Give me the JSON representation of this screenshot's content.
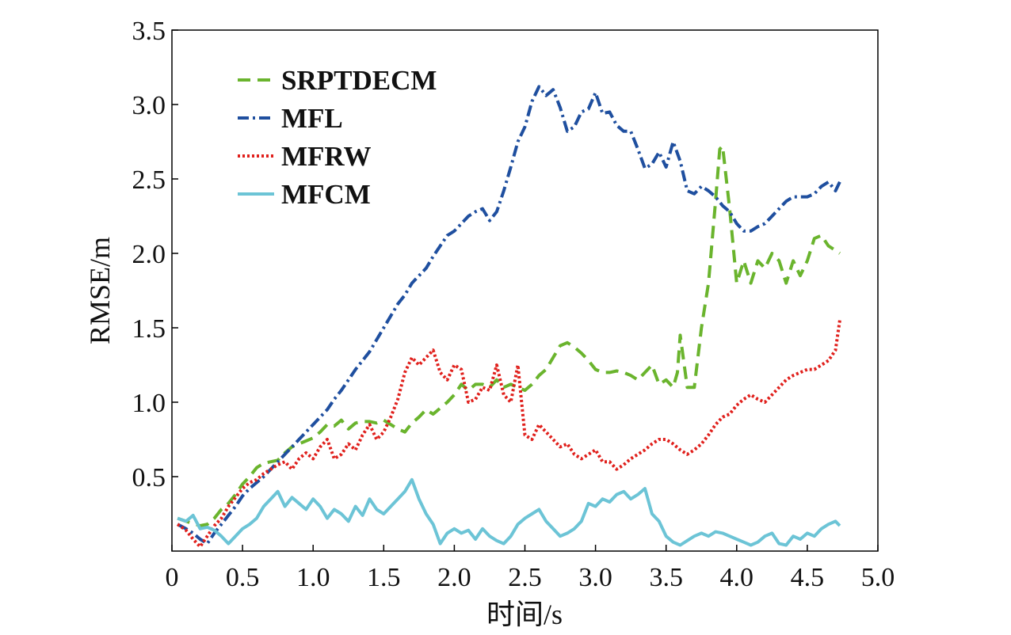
{
  "chart_data": {
    "type": "line",
    "xlabel": "时间/s",
    "ylabel": "RMSE/m",
    "xlim": [
      0,
      5.0
    ],
    "ylim": [
      0,
      3.5
    ],
    "xticks": [
      {
        "value": 0,
        "label": "0"
      },
      {
        "value": 0.5,
        "label": "0.5"
      },
      {
        "value": 1.0,
        "label": "1.0"
      },
      {
        "value": 1.5,
        "label": "1.5"
      },
      {
        "value": 2.0,
        "label": "2.0"
      },
      {
        "value": 2.5,
        "label": "2.5"
      },
      {
        "value": 3.0,
        "label": "3.0"
      },
      {
        "value": 3.5,
        "label": "3.5"
      },
      {
        "value": 4.0,
        "label": "4.0"
      },
      {
        "value": 4.5,
        "label": "4.5"
      },
      {
        "value": 5.0,
        "label": "5.0"
      }
    ],
    "yticks": [
      {
        "value": 0.5,
        "label": "0.5"
      },
      {
        "value": 1.0,
        "label": "1.0"
      },
      {
        "value": 1.5,
        "label": "1.5"
      },
      {
        "value": 2.0,
        "label": "2.0"
      },
      {
        "value": 2.5,
        "label": "2.5"
      },
      {
        "value": 3.0,
        "label": "3.0"
      },
      {
        "value": 3.5,
        "label": "3.5"
      }
    ],
    "grid": false,
    "legend_position": "top-left",
    "series": [
      {
        "name": "SRPTDECM",
        "color": "#6ab42d",
        "dash": "dashed",
        "x": [
          0.04,
          0.1,
          0.2,
          0.25,
          0.3,
          0.35,
          0.4,
          0.45,
          0.5,
          0.55,
          0.6,
          0.65,
          0.7,
          0.75,
          0.8,
          0.85,
          0.9,
          0.95,
          1.0,
          1.05,
          1.1,
          1.15,
          1.2,
          1.25,
          1.3,
          1.35,
          1.4,
          1.45,
          1.5,
          1.55,
          1.6,
          1.65,
          1.7,
          1.75,
          1.8,
          1.85,
          1.9,
          1.95,
          2.0,
          2.05,
          2.1,
          2.15,
          2.2,
          2.25,
          2.3,
          2.35,
          2.4,
          2.45,
          2.5,
          2.55,
          2.6,
          2.65,
          2.7,
          2.75,
          2.8,
          2.85,
          2.9,
          2.95,
          3.0,
          3.05,
          3.1,
          3.15,
          3.2,
          3.25,
          3.3,
          3.35,
          3.4,
          3.45,
          3.5,
          3.55,
          3.58,
          3.6,
          3.65,
          3.7,
          3.75,
          3.8,
          3.85,
          3.88,
          3.9,
          3.95,
          4.0,
          4.05,
          4.1,
          4.15,
          4.2,
          4.25,
          4.3,
          4.35,
          4.4,
          4.45,
          4.5,
          4.55,
          4.6,
          4.65,
          4.7,
          4.73
        ],
        "values": [
          0.22,
          0.2,
          0.17,
          0.18,
          0.22,
          0.28,
          0.32,
          0.38,
          0.45,
          0.5,
          0.56,
          0.59,
          0.6,
          0.61,
          0.66,
          0.7,
          0.72,
          0.74,
          0.76,
          0.8,
          0.85,
          0.84,
          0.88,
          0.82,
          0.86,
          0.87,
          0.87,
          0.86,
          0.88,
          0.85,
          0.82,
          0.8,
          0.86,
          0.9,
          0.95,
          0.92,
          0.96,
          1.0,
          1.05,
          1.12,
          1.08,
          1.12,
          1.12,
          1.1,
          1.15,
          1.1,
          1.12,
          1.1,
          1.08,
          1.12,
          1.18,
          1.22,
          1.3,
          1.38,
          1.4,
          1.37,
          1.33,
          1.28,
          1.22,
          1.2,
          1.2,
          1.21,
          1.2,
          1.18,
          1.15,
          1.2,
          1.25,
          1.12,
          1.15,
          1.1,
          1.2,
          1.45,
          1.1,
          1.1,
          1.5,
          1.8,
          2.35,
          2.7,
          2.72,
          2.3,
          1.8,
          1.95,
          1.8,
          1.95,
          1.9,
          2.0,
          1.95,
          1.8,
          1.95,
          1.85,
          1.95,
          2.1,
          2.12,
          2.05,
          2.02,
          2.0
        ]
      },
      {
        "name": "MFL",
        "color": "#1f4f9f",
        "dash": "dashdot",
        "x": [
          0.04,
          0.1,
          0.15,
          0.2,
          0.25,
          0.3,
          0.35,
          0.4,
          0.45,
          0.5,
          0.55,
          0.6,
          0.65,
          0.7,
          0.75,
          0.8,
          0.85,
          0.9,
          0.95,
          1.0,
          1.05,
          1.1,
          1.15,
          1.2,
          1.25,
          1.3,
          1.35,
          1.4,
          1.45,
          1.5,
          1.55,
          1.6,
          1.65,
          1.7,
          1.75,
          1.8,
          1.85,
          1.9,
          1.95,
          2.0,
          2.05,
          2.1,
          2.15,
          2.2,
          2.25,
          2.3,
          2.35,
          2.4,
          2.45,
          2.5,
          2.55,
          2.6,
          2.65,
          2.7,
          2.75,
          2.8,
          2.85,
          2.9,
          2.95,
          3.0,
          3.05,
          3.1,
          3.15,
          3.2,
          3.25,
          3.3,
          3.35,
          3.4,
          3.45,
          3.5,
          3.55,
          3.6,
          3.65,
          3.7,
          3.75,
          3.8,
          3.85,
          3.9,
          3.95,
          4.0,
          4.05,
          4.1,
          4.15,
          4.2,
          4.25,
          4.3,
          4.35,
          4.4,
          4.45,
          4.5,
          4.55,
          4.6,
          4.65,
          4.7,
          4.73
        ],
        "values": [
          0.18,
          0.15,
          0.12,
          0.08,
          0.05,
          0.12,
          0.18,
          0.24,
          0.3,
          0.37,
          0.42,
          0.46,
          0.5,
          0.55,
          0.6,
          0.65,
          0.7,
          0.75,
          0.8,
          0.85,
          0.9,
          0.95,
          1.02,
          1.08,
          1.15,
          1.22,
          1.28,
          1.34,
          1.42,
          1.5,
          1.58,
          1.66,
          1.72,
          1.8,
          1.85,
          1.9,
          1.98,
          2.05,
          2.12,
          2.15,
          2.2,
          2.25,
          2.28,
          2.3,
          2.22,
          2.28,
          2.42,
          2.58,
          2.75,
          2.85,
          3.02,
          3.12,
          3.06,
          3.1,
          2.98,
          2.82,
          2.85,
          2.95,
          2.97,
          3.08,
          2.94,
          2.95,
          2.86,
          2.82,
          2.82,
          2.7,
          2.57,
          2.6,
          2.68,
          2.58,
          2.75,
          2.62,
          2.42,
          2.4,
          2.45,
          2.42,
          2.38,
          2.32,
          2.28,
          2.2,
          2.15,
          2.15,
          2.18,
          2.2,
          2.25,
          2.3,
          2.35,
          2.38,
          2.38,
          2.38,
          2.4,
          2.45,
          2.48,
          2.42,
          2.48
        ]
      },
      {
        "name": "MFRW",
        "color": "#e0201c",
        "dash": "dotted",
        "x": [
          0.04,
          0.1,
          0.15,
          0.2,
          0.25,
          0.3,
          0.35,
          0.4,
          0.45,
          0.5,
          0.55,
          0.6,
          0.65,
          0.7,
          0.75,
          0.8,
          0.85,
          0.9,
          0.95,
          1.0,
          1.05,
          1.1,
          1.15,
          1.2,
          1.25,
          1.3,
          1.35,
          1.4,
          1.45,
          1.5,
          1.55,
          1.6,
          1.65,
          1.7,
          1.75,
          1.8,
          1.85,
          1.9,
          1.95,
          2.0,
          2.05,
          2.1,
          2.15,
          2.2,
          2.25,
          2.3,
          2.35,
          2.4,
          2.45,
          2.5,
          2.55,
          2.6,
          2.65,
          2.7,
          2.75,
          2.8,
          2.85,
          2.9,
          2.95,
          3.0,
          3.05,
          3.1,
          3.15,
          3.2,
          3.25,
          3.3,
          3.35,
          3.4,
          3.45,
          3.5,
          3.55,
          3.6,
          3.65,
          3.7,
          3.75,
          3.8,
          3.85,
          3.9,
          3.95,
          4.0,
          4.05,
          4.1,
          4.15,
          4.2,
          4.25,
          4.3,
          4.35,
          4.4,
          4.45,
          4.5,
          4.55,
          4.6,
          4.65,
          4.7,
          4.73
        ],
        "values": [
          0.18,
          0.14,
          0.08,
          0.03,
          0.1,
          0.17,
          0.22,
          0.3,
          0.36,
          0.42,
          0.46,
          0.48,
          0.52,
          0.55,
          0.58,
          0.6,
          0.55,
          0.62,
          0.66,
          0.62,
          0.7,
          0.75,
          0.62,
          0.65,
          0.72,
          0.68,
          0.78,
          0.85,
          0.75,
          0.8,
          0.9,
          1.02,
          1.2,
          1.3,
          1.25,
          1.3,
          1.35,
          1.2,
          1.15,
          1.25,
          1.22,
          1.0,
          1.02,
          1.1,
          1.08,
          1.25,
          1.05,
          1.0,
          1.25,
          0.78,
          0.75,
          0.85,
          0.8,
          0.75,
          0.7,
          0.72,
          0.65,
          0.62,
          0.65,
          0.68,
          0.6,
          0.6,
          0.55,
          0.58,
          0.62,
          0.65,
          0.68,
          0.72,
          0.75,
          0.75,
          0.72,
          0.68,
          0.65,
          0.68,
          0.72,
          0.78,
          0.85,
          0.9,
          0.92,
          0.98,
          1.02,
          1.05,
          1.02,
          1.0,
          1.05,
          1.1,
          1.15,
          1.18,
          1.2,
          1.22,
          1.22,
          1.25,
          1.28,
          1.35,
          1.55
        ]
      },
      {
        "name": "MFCM",
        "color": "#6cc4d6",
        "dash": "solid",
        "x": [
          0.04,
          0.1,
          0.15,
          0.2,
          0.25,
          0.3,
          0.35,
          0.4,
          0.45,
          0.5,
          0.55,
          0.6,
          0.65,
          0.7,
          0.75,
          0.8,
          0.85,
          0.9,
          0.95,
          1.0,
          1.05,
          1.1,
          1.15,
          1.2,
          1.25,
          1.3,
          1.35,
          1.4,
          1.45,
          1.5,
          1.55,
          1.6,
          1.65,
          1.7,
          1.75,
          1.8,
          1.85,
          1.9,
          1.95,
          2.0,
          2.05,
          2.1,
          2.15,
          2.2,
          2.25,
          2.3,
          2.35,
          2.4,
          2.45,
          2.5,
          2.55,
          2.6,
          2.65,
          2.7,
          2.75,
          2.8,
          2.85,
          2.9,
          2.95,
          3.0,
          3.05,
          3.1,
          3.15,
          3.2,
          3.25,
          3.3,
          3.35,
          3.4,
          3.45,
          3.5,
          3.55,
          3.6,
          3.65,
          3.7,
          3.75,
          3.8,
          3.85,
          3.9,
          3.95,
          4.0,
          4.05,
          4.1,
          4.15,
          4.2,
          4.25,
          4.3,
          4.35,
          4.4,
          4.45,
          4.5,
          4.55,
          4.6,
          4.65,
          4.7,
          4.73
        ],
        "values": [
          0.22,
          0.2,
          0.24,
          0.15,
          0.16,
          0.14,
          0.1,
          0.05,
          0.1,
          0.15,
          0.18,
          0.22,
          0.3,
          0.35,
          0.4,
          0.3,
          0.36,
          0.32,
          0.28,
          0.35,
          0.3,
          0.22,
          0.28,
          0.25,
          0.2,
          0.3,
          0.24,
          0.35,
          0.28,
          0.25,
          0.3,
          0.35,
          0.4,
          0.48,
          0.35,
          0.25,
          0.18,
          0.05,
          0.12,
          0.15,
          0.12,
          0.14,
          0.08,
          0.15,
          0.1,
          0.07,
          0.05,
          0.1,
          0.18,
          0.22,
          0.25,
          0.28,
          0.2,
          0.15,
          0.1,
          0.12,
          0.15,
          0.2,
          0.32,
          0.3,
          0.35,
          0.33,
          0.38,
          0.4,
          0.35,
          0.38,
          0.42,
          0.25,
          0.2,
          0.1,
          0.06,
          0.04,
          0.07,
          0.1,
          0.12,
          0.1,
          0.13,
          0.12,
          0.1,
          0.08,
          0.06,
          0.04,
          0.06,
          0.1,
          0.12,
          0.05,
          0.04,
          0.1,
          0.08,
          0.12,
          0.1,
          0.15,
          0.18,
          0.2,
          0.17
        ]
      }
    ]
  }
}
